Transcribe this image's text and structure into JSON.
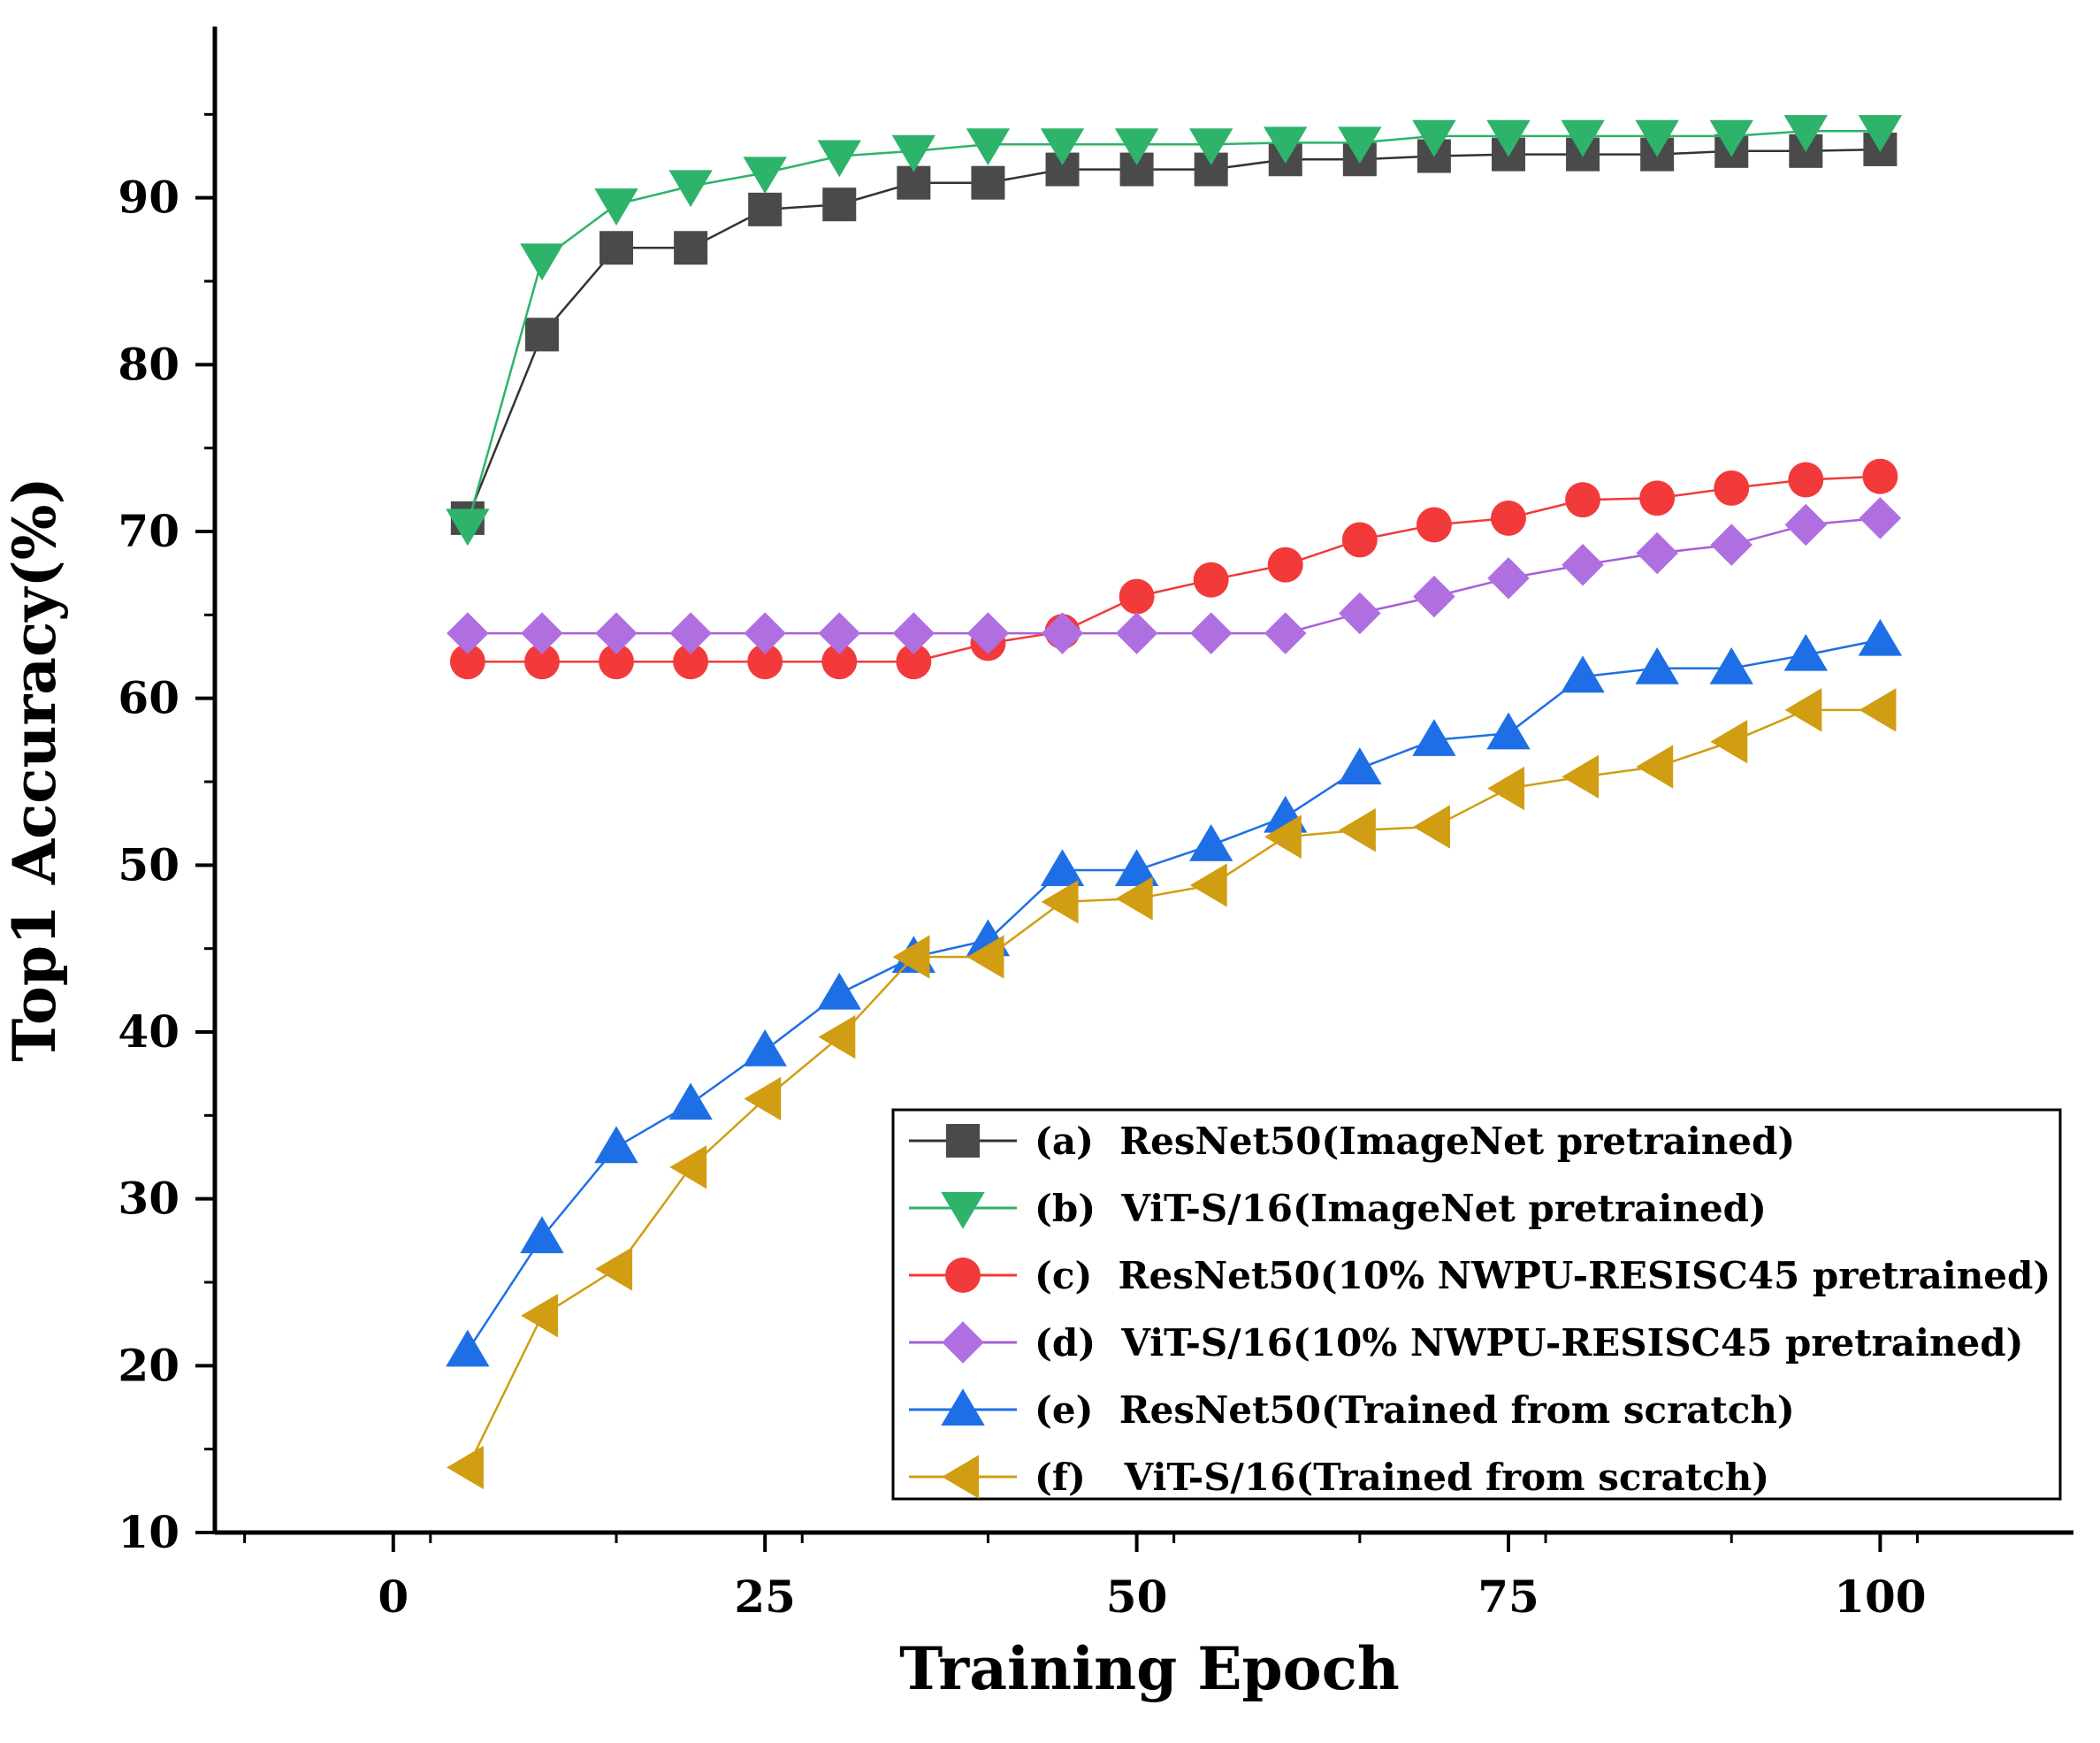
{
  "chart_data": {
    "type": "line",
    "xlabel": "Training Epoch",
    "ylabel": "Top1 Accuracy(%)",
    "xlim": [
      -12,
      113
    ],
    "ylim": [
      10,
      100
    ],
    "xticks": [
      0,
      25,
      50,
      75,
      100
    ],
    "yticks": [
      10,
      20,
      30,
      40,
      50,
      60,
      70,
      80,
      90
    ],
    "x": [
      5,
      10,
      15,
      20,
      25,
      30,
      35,
      40,
      45,
      50,
      55,
      60,
      65,
      70,
      75,
      80,
      85,
      90,
      95,
      100
    ],
    "legend_position": "bottom-right",
    "series": [
      {
        "name": "(a)  ResNet50(ImageNet pretrained)",
        "color": "#4a4a4a",
        "line_color": "#333333",
        "marker": "square",
        "values": [
          70.8,
          81.8,
          87.0,
          87.0,
          89.3,
          89.6,
          90.9,
          90.9,
          91.7,
          91.7,
          91.7,
          92.3,
          92.3,
          92.5,
          92.6,
          92.6,
          92.6,
          92.8,
          92.8,
          92.9
        ]
      },
      {
        "name": "(b)  ViT-S/16(ImageNet pretrained)",
        "color": "#2db36a",
        "line_color": "#2db36a",
        "marker": "triangle-down",
        "values": [
          70.4,
          86.3,
          89.6,
          90.7,
          91.5,
          92.5,
          92.8,
          93.2,
          93.2,
          93.2,
          93.2,
          93.3,
          93.3,
          93.7,
          93.7,
          93.7,
          93.7,
          93.7,
          94.0,
          94.0
        ]
      },
      {
        "name": "(c)  ResNet50(10% NWPU-RESISC45 pretrained)",
        "color": "#f23a3a",
        "line_color": "#f23a3a",
        "marker": "circle",
        "values": [
          62.2,
          62.2,
          62.2,
          62.2,
          62.2,
          62.2,
          62.2,
          63.3,
          64.0,
          66.1,
          67.1,
          68.0,
          69.5,
          70.4,
          70.8,
          71.9,
          72.0,
          72.6,
          73.1,
          73.3
        ]
      },
      {
        "name": "(d)  ViT-S/16(10% NWPU-RESISC45 pretrained)",
        "color": "#b06fe0",
        "line_color": "#a65fd8",
        "marker": "diamond",
        "values": [
          63.9,
          63.9,
          63.9,
          63.9,
          63.9,
          63.9,
          63.9,
          63.9,
          63.9,
          63.9,
          63.9,
          63.9,
          65.1,
          66.1,
          67.2,
          68.0,
          68.7,
          69.2,
          70.4,
          70.8
        ]
      },
      {
        "name": "(e)  ResNet50(Trained from scratch)",
        "color": "#1e6fe6",
        "line_color": "#1e6fe6",
        "marker": "triangle-up",
        "values": [
          20.9,
          27.7,
          33.1,
          35.7,
          38.9,
          42.3,
          44.5,
          45.5,
          49.7,
          49.7,
          51.2,
          52.9,
          55.8,
          57.5,
          57.9,
          61.3,
          61.8,
          61.8,
          62.6,
          63.5
        ]
      },
      {
        "name": "(f)   ViT-S/16(Trained from scratch)",
        "color": "#d19d12",
        "line_color": "#d19d12",
        "marker": "triangle-left",
        "values": [
          13.9,
          23.0,
          25.8,
          31.9,
          36.0,
          39.7,
          44.5,
          44.5,
          47.8,
          48.0,
          48.8,
          51.7,
          52.1,
          52.3,
          54.6,
          55.3,
          55.9,
          57.4,
          59.3,
          59.3
        ]
      }
    ]
  }
}
